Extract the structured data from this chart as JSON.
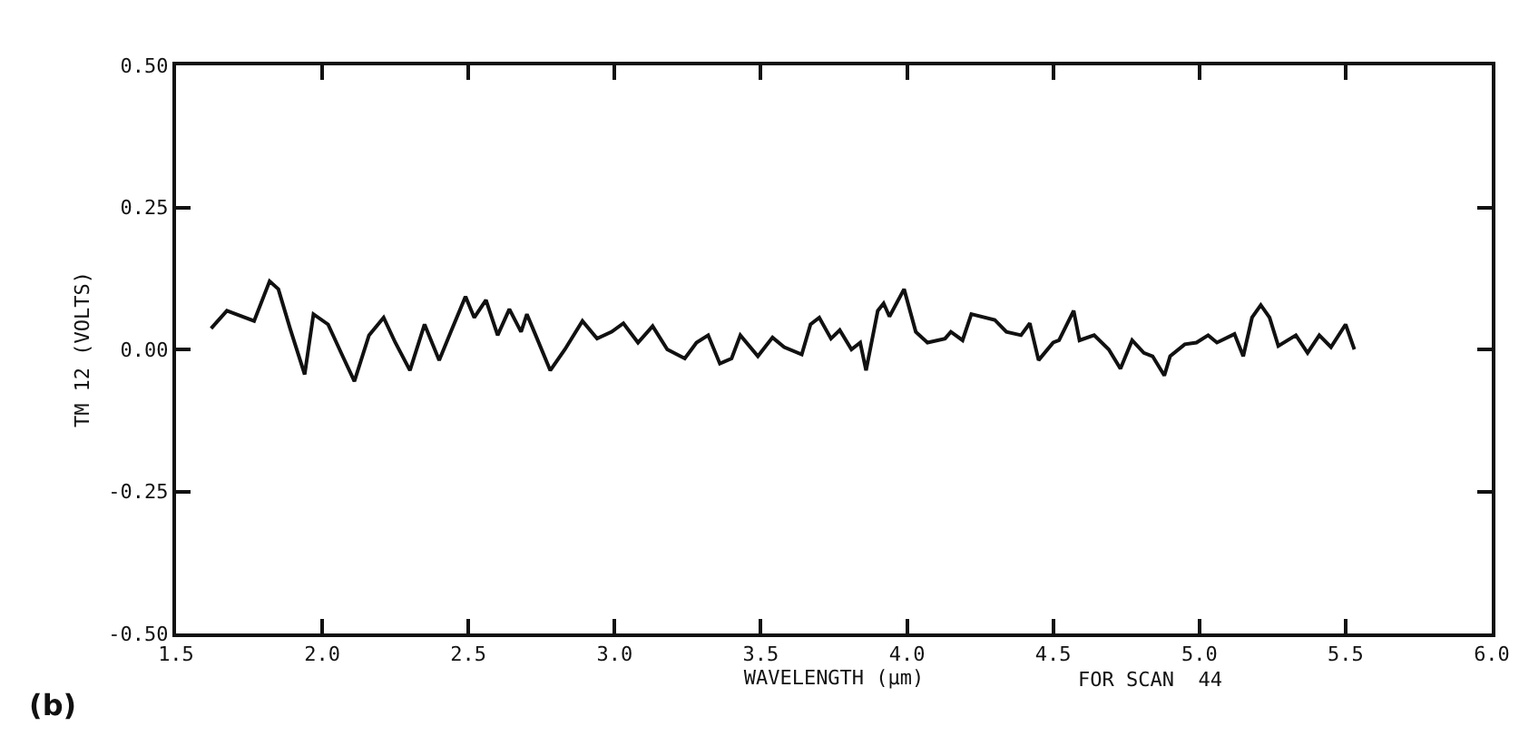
{
  "chart_data": {
    "type": "line",
    "xlabel": "WAVELENGTH (μm)",
    "ylabel": "TM 12 (VOLTS)",
    "annotations": [
      "FOR SCAN  44",
      "(b)"
    ],
    "x": [
      1.62,
      1.674,
      1.767,
      1.82,
      1.85,
      1.89,
      1.94,
      1.97,
      2.02,
      2.07,
      2.11,
      2.16,
      2.21,
      2.25,
      2.3,
      2.35,
      2.4,
      2.44,
      2.49,
      2.52,
      2.56,
      2.6,
      2.64,
      2.68,
      2.7,
      2.73,
      2.78,
      2.83,
      2.89,
      2.94,
      2.99,
      3.03,
      3.08,
      3.13,
      3.18,
      3.24,
      3.28,
      3.32,
      3.36,
      3.4,
      3.43,
      3.49,
      3.54,
      3.58,
      3.64,
      3.67,
      3.7,
      3.74,
      3.77,
      3.81,
      3.84,
      3.86,
      3.9,
      3.92,
      3.94,
      3.99,
      4.03,
      4.07,
      4.13,
      4.15,
      4.19,
      4.22,
      4.3,
      4.34,
      4.39,
      4.42,
      4.45,
      4.5,
      4.52,
      4.57,
      4.59,
      4.64,
      4.69,
      4.73,
      4.77,
      4.81,
      4.84,
      4.88,
      4.9,
      4.95,
      4.99,
      5.03,
      5.06,
      5.12,
      5.15,
      5.18,
      5.21,
      5.24,
      5.27,
      5.33,
      5.37,
      5.41,
      5.45,
      5.5,
      5.53
    ],
    "series": [
      {
        "color": "#111111",
        "values": [
          0.037,
          0.068,
          0.05,
          0.12,
          0.106,
          0.037,
          -0.044,
          0.062,
          0.044,
          -0.012,
          -0.056,
          0.025,
          0.056,
          0.012,
          -0.037,
          0.044,
          -0.019,
          0.031,
          0.093,
          0.056,
          0.087,
          0.025,
          0.071,
          0.031,
          0.062,
          0.025,
          -0.037,
          0,
          0.05,
          0.019,
          0.031,
          0.046,
          0.012,
          0.041,
          0,
          -0.016,
          0.012,
          0.025,
          -0.025,
          -0.016,
          0.025,
          -0.012,
          0.021,
          0.004,
          -0.009,
          0.044,
          0.056,
          0.019,
          0.034,
          0,
          0.012,
          -0.037,
          0.068,
          0.081,
          0.058,
          0.106,
          0.031,
          0.012,
          0.019,
          0.031,
          0.016,
          0.062,
          0.052,
          0.031,
          0.025,
          0.046,
          -0.019,
          0.012,
          0.016,
          0.068,
          0.016,
          0.025,
          0,
          -0.034,
          0.016,
          -0.006,
          -0.012,
          -0.046,
          -0.012,
          0.009,
          0.012,
          0.025,
          0.012,
          0.027,
          -0.012,
          0.056,
          0.078,
          0.056,
          0.006,
          0.025,
          -0.006,
          0.025,
          0.004,
          0.044,
          0
        ]
      }
    ],
    "xlim": [
      1.5,
      6.0
    ],
    "xticks": [
      {
        "value": 1.5,
        "label": "1.5"
      },
      {
        "value": 2,
        "label": "2.0"
      },
      {
        "value": 2.5,
        "label": "2.5"
      },
      {
        "value": 3,
        "label": "3.0"
      },
      {
        "value": 3.5,
        "label": "3.5"
      },
      {
        "value": 4,
        "label": "4.0"
      },
      {
        "value": 4.5,
        "label": "4.5"
      },
      {
        "value": 5,
        "label": "5.0"
      },
      {
        "value": 5.5,
        "label": "5.5"
      },
      {
        "value": 6,
        "label": "6.0"
      }
    ],
    "ylim": [
      -0.5,
      0.5
    ],
    "yticks": [
      {
        "value": -0.5,
        "label": "-0.50"
      },
      {
        "value": -0.25,
        "label": "-0.25"
      },
      {
        "value": 0,
        "label": "0.00"
      },
      {
        "value": 0.25,
        "label": "0.25"
      },
      {
        "value": 0.5,
        "label": "0.50"
      }
    ],
    "grid": false,
    "legend": false,
    "marker": "none",
    "line_style": "solid"
  }
}
